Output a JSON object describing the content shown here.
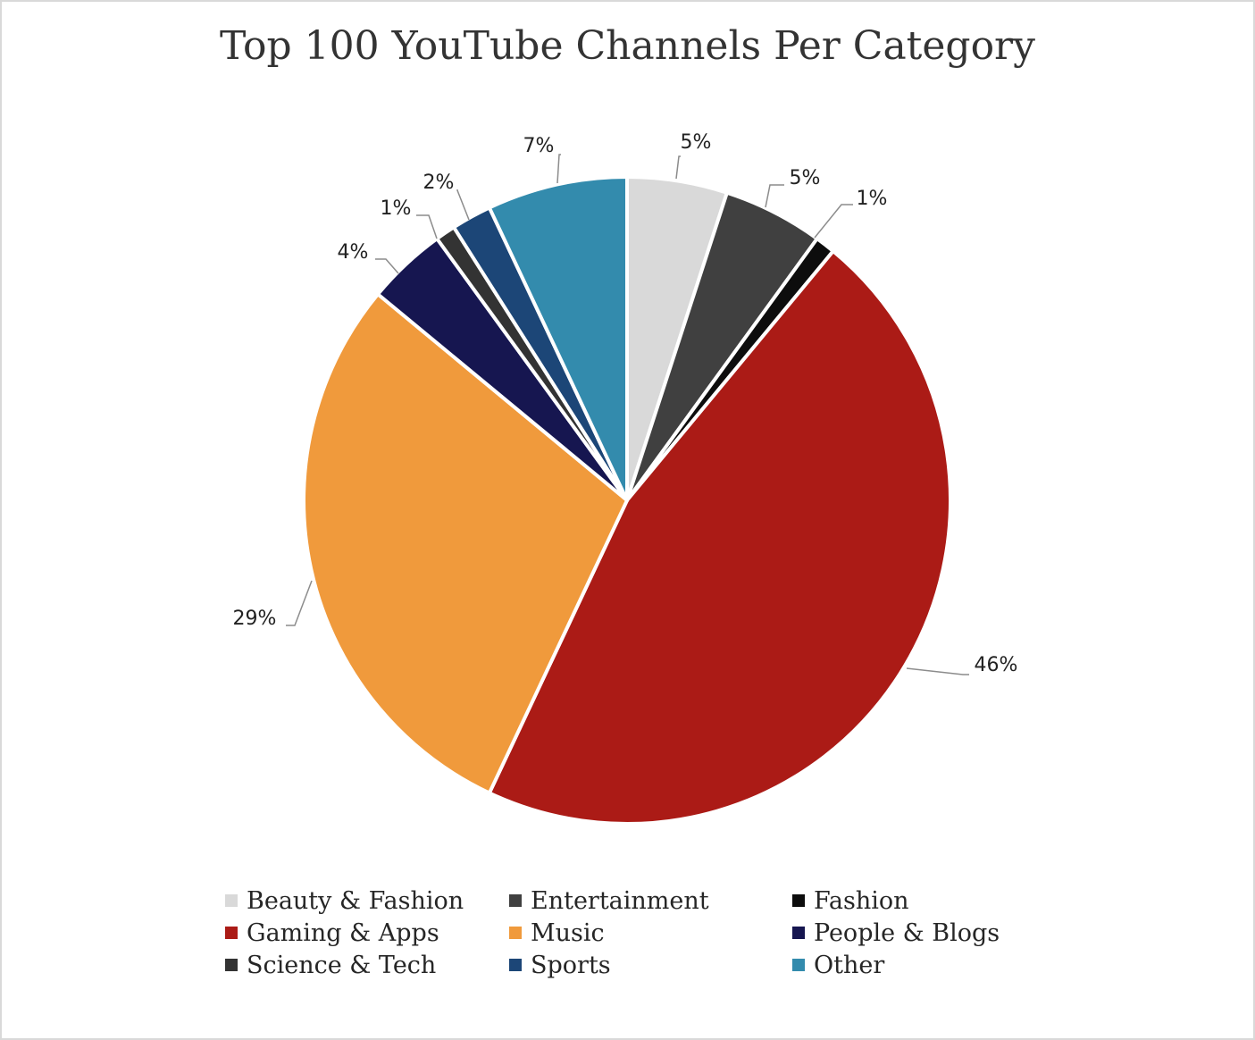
{
  "chart_data": {
    "type": "pie",
    "title": "Top 100 YouTube Channels Per Category",
    "slices": [
      {
        "name": "Beauty & Fashion",
        "value": 5,
        "label": "5%",
        "color": "#d9d9d9"
      },
      {
        "name": "Entertainment",
        "value": 5,
        "label": "5%",
        "color": "#404040"
      },
      {
        "name": "Fashion",
        "value": 1,
        "label": "1%",
        "color": "#0d0d0d"
      },
      {
        "name": "Gaming & Apps",
        "value": 46,
        "label": "46%",
        "color": "#ab1b16"
      },
      {
        "name": "Music",
        "value": 29,
        "label": "29%",
        "color": "#f09a3c"
      },
      {
        "name": "People & Blogs",
        "value": 4,
        "label": "4%",
        "color": "#161650"
      },
      {
        "name": "Science & Tech",
        "value": 1,
        "label": "1%",
        "color": "#333333"
      },
      {
        "name": "Sports",
        "value": 2,
        "label": "2%",
        "color": "#1c4677"
      },
      {
        "name": "Other",
        "value": 7,
        "label": "7%",
        "color": "#338bad"
      }
    ],
    "legend_position": "bottom"
  }
}
